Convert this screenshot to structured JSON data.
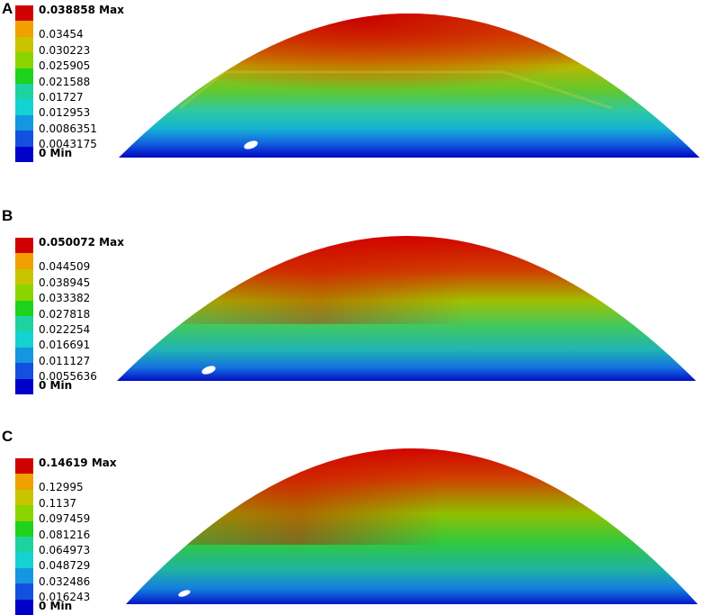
{
  "colors": [
    "#d10000",
    "#f0a000",
    "#c8c400",
    "#8cd400",
    "#1ed21e",
    "#1ed2a0",
    "#14d2d2",
    "#1496e0",
    "#1450e0",
    "#0000c8"
  ],
  "panels": [
    {
      "label": "A",
      "legend": [
        "0.038858 Max",
        "0.03454",
        "0.030223",
        "0.025905",
        "0.021588",
        "0.01727",
        "0.012953",
        "0.0086351",
        "0.0043175",
        "0 Min"
      ]
    },
    {
      "label": "B",
      "legend": [
        "0.050072 Max",
        "0.044509",
        "0.038945",
        "0.033382",
        "0.027818",
        "0.022254",
        "0.016691",
        "0.011127",
        "0.0055636",
        "0 Min"
      ]
    },
    {
      "label": "C",
      "legend": [
        "0.14619 Max",
        "0.12995",
        "0.1137",
        "0.097459",
        "0.081216",
        "0.064973",
        "0.048729",
        "0.032486",
        "0.016243",
        "0 Min"
      ]
    }
  ]
}
